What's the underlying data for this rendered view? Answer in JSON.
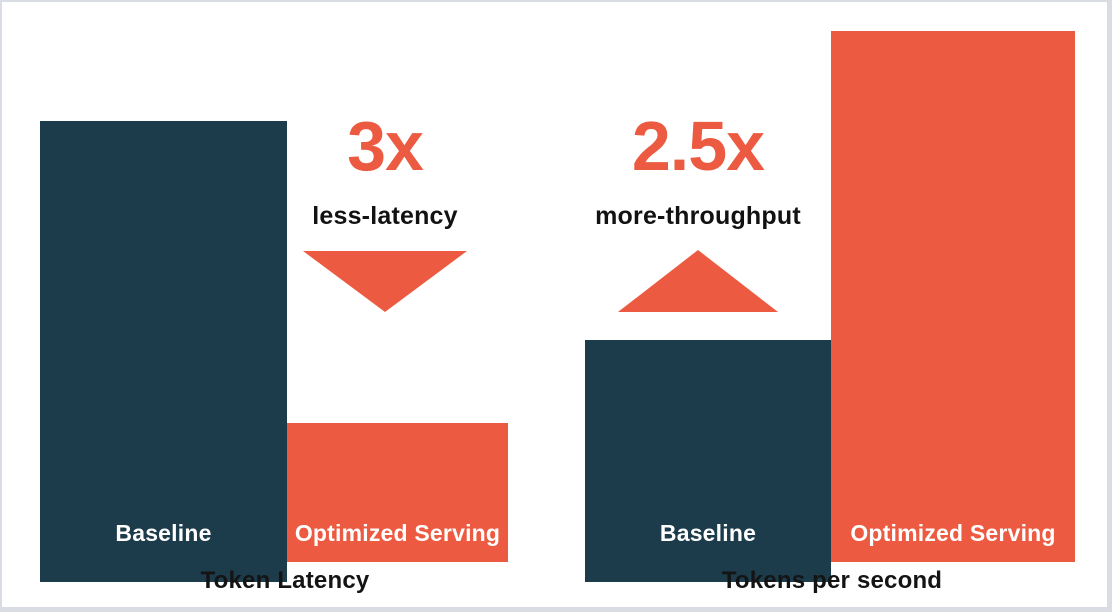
{
  "colors": {
    "accent_orange": "#EC5B41",
    "dark_teal": "#1C3B4B",
    "title_text": "#141414",
    "bar_label_text": "#FFFFFF",
    "frame_border": "#D9DDE3",
    "background": "#FFFFFF"
  },
  "chart_data": [
    {
      "type": "bar",
      "title": "Token Latency",
      "categories": [
        "Baseline",
        "Optimized Serving"
      ],
      "values": [
        3,
        1
      ],
      "bar_colors": [
        "#1C3B4B",
        "#EC5B41"
      ],
      "annotation": {
        "multiplier": "3x",
        "label": "less-latency",
        "arrow": "down"
      },
      "axes": "none",
      "value_scale": "relative",
      "legend": "none"
    },
    {
      "type": "bar",
      "title": "Tokens per second",
      "categories": [
        "Baseline",
        "Optimized Serving"
      ],
      "values": [
        1,
        2.5
      ],
      "bar_colors": [
        "#1C3B4B",
        "#EC5B41"
      ],
      "annotation": {
        "multiplier": "2.5x",
        "label": "more-throughput",
        "arrow": "up"
      },
      "axes": "none",
      "value_scale": "relative",
      "legend": "none"
    }
  ]
}
